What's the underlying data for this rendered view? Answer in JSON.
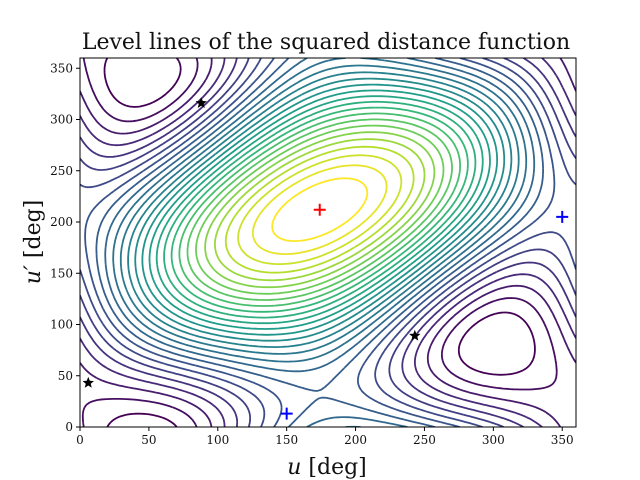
{
  "chart_data": {
    "type": "contour",
    "title": "Level lines of the squared distance function",
    "xlabel_var": "u",
    "xlabel_unit": " [deg]",
    "ylabel_var": "u′",
    "ylabel_unit": " [deg]",
    "xlim": [
      0,
      360
    ],
    "ylim": [
      0,
      360
    ],
    "xticks": [
      0,
      50,
      100,
      150,
      200,
      250,
      300,
      350
    ],
    "yticks": [
      0,
      50,
      100,
      150,
      200,
      250,
      300,
      350
    ],
    "grid": false,
    "colormap": "viridis",
    "field_minimum": [
      174,
      212
    ],
    "markers": {
      "stars": [
        {
          "x": 6,
          "y": 43
        },
        {
          "x": 88,
          "y": 316
        },
        {
          "x": 243,
          "y": 89
        }
      ],
      "blue_plus": [
        {
          "x": 150,
          "y": 13
        },
        {
          "x": 350,
          "y": 205
        }
      ],
      "red_plus": [
        {
          "x": 174,
          "y": 212
        }
      ]
    },
    "colors": {
      "star": "#000000",
      "blue_plus": "#0000ff",
      "red_plus": "#ff0000"
    }
  }
}
